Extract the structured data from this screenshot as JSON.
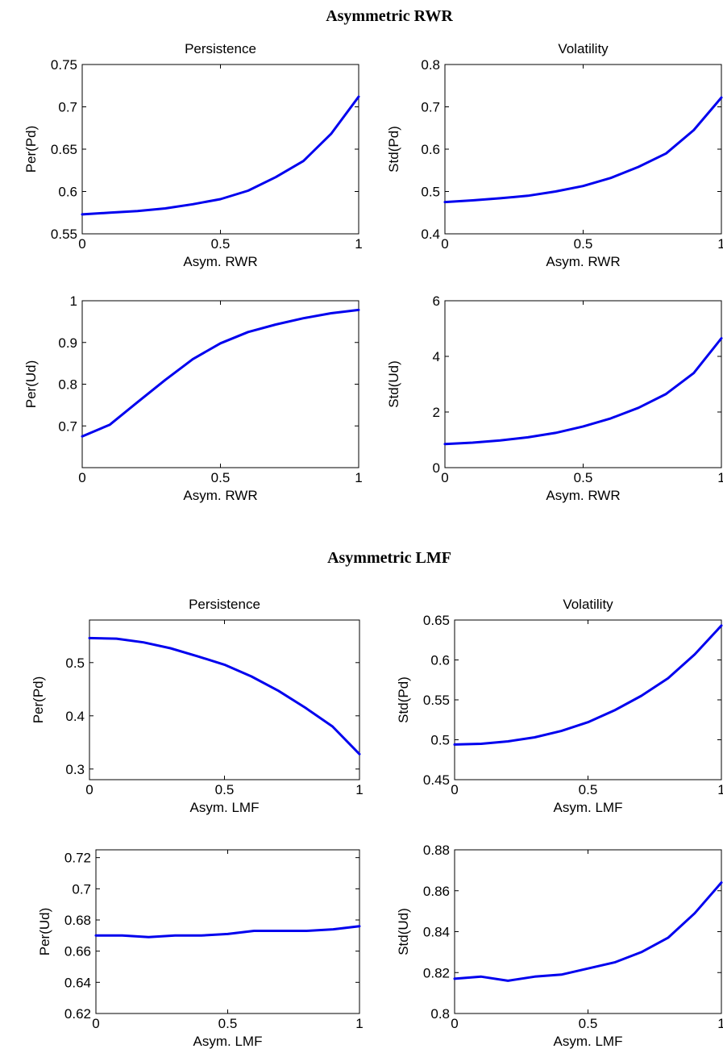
{
  "figure": {
    "sections": [
      {
        "title": "Asymmetric RWR"
      },
      {
        "title": "Asymmetric LMF"
      }
    ]
  },
  "chart_data": [
    {
      "type": "line",
      "section": 0,
      "title": "Persistence",
      "xlabel": "Asym. RWR",
      "ylabel": "Per(Pd)",
      "xlim": [
        0,
        1
      ],
      "ylim": [
        0.55,
        0.75
      ],
      "xticks": [
        0,
        0.5,
        1
      ],
      "xtick_labels": [
        "0",
        "0.5",
        "1"
      ],
      "yticks": [
        0.55,
        0.6,
        0.65,
        0.7,
        0.75
      ],
      "ytick_labels": [
        "0.55",
        "0.6",
        "0.65",
        "0.7",
        "0.75"
      ],
      "x": [
        0,
        0.1,
        0.2,
        0.3,
        0.4,
        0.5,
        0.6,
        0.7,
        0.8,
        0.9,
        1.0
      ],
      "y": [
        0.573,
        0.575,
        0.577,
        0.58,
        0.585,
        0.591,
        0.601,
        0.617,
        0.636,
        0.668,
        0.712
      ],
      "color": "#0000ee"
    },
    {
      "type": "line",
      "section": 0,
      "title": "Volatility",
      "xlabel": "Asym. RWR",
      "ylabel": "Std(Pd)",
      "xlim": [
        0,
        1
      ],
      "ylim": [
        0.4,
        0.8
      ],
      "xticks": [
        0,
        0.5,
        1
      ],
      "xtick_labels": [
        "0",
        "0.5",
        "1"
      ],
      "yticks": [
        0.4,
        0.5,
        0.6,
        0.7,
        0.8
      ],
      "ytick_labels": [
        "0.4",
        "0.5",
        "0.6",
        "0.7",
        "0.8"
      ],
      "x": [
        0,
        0.1,
        0.2,
        0.3,
        0.4,
        0.5,
        0.6,
        0.7,
        0.8,
        0.9,
        1.0
      ],
      "y": [
        0.475,
        0.479,
        0.484,
        0.49,
        0.5,
        0.513,
        0.532,
        0.558,
        0.59,
        0.645,
        0.722
      ],
      "color": "#0000ee"
    },
    {
      "type": "line",
      "section": 0,
      "title": "",
      "xlabel": "Asym. RWR",
      "ylabel": "Per(Ud)",
      "xlim": [
        0,
        1
      ],
      "ylim": [
        0.6,
        1.0
      ],
      "xticks": [
        0,
        0.5,
        1
      ],
      "xtick_labels": [
        "0",
        "0.5",
        "1"
      ],
      "yticks": [
        0.7,
        0.8,
        0.9,
        1.0
      ],
      "ytick_labels": [
        "0.7",
        "0.8",
        "0.9",
        "1"
      ],
      "x": [
        0,
        0.1,
        0.2,
        0.3,
        0.4,
        0.5,
        0.6,
        0.7,
        0.8,
        0.9,
        1.0
      ],
      "y": [
        0.675,
        0.703,
        0.757,
        0.81,
        0.86,
        0.898,
        0.925,
        0.943,
        0.958,
        0.97,
        0.978
      ],
      "color": "#0000ee"
    },
    {
      "type": "line",
      "section": 0,
      "title": "",
      "xlabel": "Asym. RWR",
      "ylabel": "Std(Ud)",
      "xlim": [
        0,
        1
      ],
      "ylim": [
        0,
        6
      ],
      "xticks": [
        0,
        0.5,
        1
      ],
      "xtick_labels": [
        "0",
        "0.5",
        "1"
      ],
      "yticks": [
        0,
        2,
        4,
        6
      ],
      "ytick_labels": [
        "0",
        "2",
        "4",
        "6"
      ],
      "x": [
        0,
        0.1,
        0.2,
        0.3,
        0.4,
        0.5,
        0.6,
        0.7,
        0.8,
        0.9,
        1.0
      ],
      "y": [
        0.85,
        0.9,
        0.98,
        1.09,
        1.25,
        1.48,
        1.77,
        2.15,
        2.65,
        3.4,
        4.65
      ],
      "color": "#0000ee"
    },
    {
      "type": "line",
      "section": 1,
      "title": "Persistence",
      "xlabel": "Asym. LMF",
      "ylabel": "Per(Pd)",
      "xlim": [
        0,
        1
      ],
      "ylim": [
        0.28,
        0.58
      ],
      "xticks": [
        0,
        0.5,
        1
      ],
      "xtick_labels": [
        "0",
        "0.5",
        "1"
      ],
      "yticks": [
        0.3,
        0.4,
        0.5
      ],
      "ytick_labels": [
        "0.3",
        "0.4",
        "0.5"
      ],
      "x": [
        0,
        0.1,
        0.2,
        0.3,
        0.4,
        0.5,
        0.6,
        0.7,
        0.8,
        0.9,
        1.0
      ],
      "y": [
        0.546,
        0.545,
        0.538,
        0.527,
        0.512,
        0.496,
        0.474,
        0.447,
        0.415,
        0.38,
        0.328
      ],
      "color": "#0000ee"
    },
    {
      "type": "line",
      "section": 1,
      "title": "Volatility",
      "xlabel": "Asym. LMF",
      "ylabel": "Std(Pd)",
      "xlim": [
        0,
        1
      ],
      "ylim": [
        0.45,
        0.65
      ],
      "xticks": [
        0,
        0.5,
        1
      ],
      "xtick_labels": [
        "0",
        "0.5",
        "1"
      ],
      "yticks": [
        0.45,
        0.5,
        0.55,
        0.6,
        0.65
      ],
      "ytick_labels": [
        "0.45",
        "0.5",
        "0.55",
        "0.6",
        "0.65"
      ],
      "x": [
        0,
        0.1,
        0.2,
        0.3,
        0.4,
        0.5,
        0.6,
        0.7,
        0.8,
        0.9,
        1.0
      ],
      "y": [
        0.494,
        0.495,
        0.498,
        0.503,
        0.511,
        0.522,
        0.537,
        0.555,
        0.577,
        0.607,
        0.643
      ],
      "color": "#0000ee"
    },
    {
      "type": "line",
      "section": 1,
      "title": "",
      "xlabel": "Asym. LMF",
      "ylabel": "Per(Ud)",
      "xlim": [
        0,
        1
      ],
      "ylim": [
        0.62,
        0.725
      ],
      "xticks": [
        0,
        0.5,
        1
      ],
      "xtick_labels": [
        "0",
        "0.5",
        "1"
      ],
      "yticks": [
        0.62,
        0.64,
        0.66,
        0.68,
        0.7,
        0.72
      ],
      "ytick_labels": [
        "0.62",
        "0.64",
        "0.66",
        "0.68",
        "0.7",
        "0.72"
      ],
      "x": [
        0,
        0.1,
        0.2,
        0.3,
        0.4,
        0.5,
        0.6,
        0.7,
        0.8,
        0.9,
        1.0
      ],
      "y": [
        0.67,
        0.67,
        0.669,
        0.67,
        0.67,
        0.671,
        0.673,
        0.673,
        0.673,
        0.674,
        0.676
      ],
      "color": "#0000ee"
    },
    {
      "type": "line",
      "section": 1,
      "title": "",
      "xlabel": "Asym. LMF",
      "ylabel": "Std(Ud)",
      "xlim": [
        0,
        1
      ],
      "ylim": [
        0.8,
        0.88
      ],
      "xticks": [
        0,
        0.5,
        1
      ],
      "xtick_labels": [
        "0",
        "0.5",
        "1"
      ],
      "yticks": [
        0.8,
        0.82,
        0.84,
        0.86,
        0.88
      ],
      "ytick_labels": [
        "0.8",
        "0.82",
        "0.84",
        "0.86",
        "0.88"
      ],
      "x": [
        0,
        0.1,
        0.2,
        0.3,
        0.4,
        0.5,
        0.6,
        0.7,
        0.8,
        0.9,
        1.0
      ],
      "y": [
        0.817,
        0.818,
        0.816,
        0.818,
        0.819,
        0.822,
        0.825,
        0.83,
        0.837,
        0.849,
        0.864
      ],
      "color": "#0000ee"
    }
  ]
}
